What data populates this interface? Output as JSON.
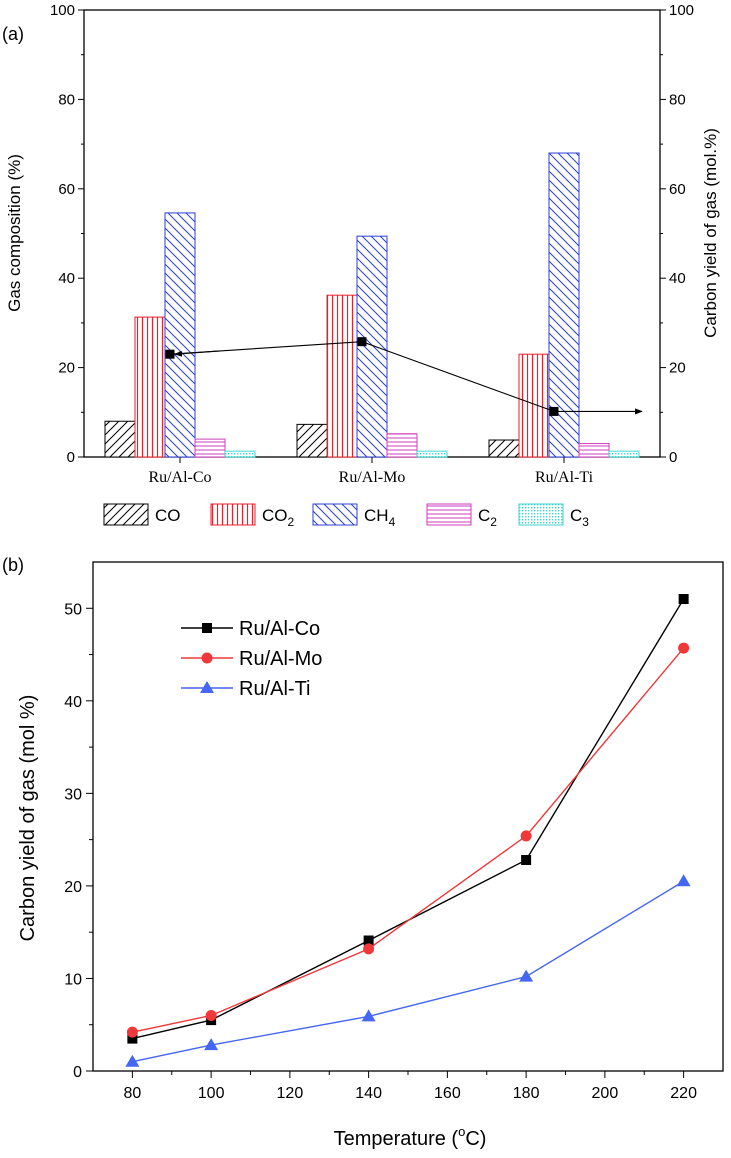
{
  "chart_data": [
    {
      "panel_label": "(a)",
      "type": "bar",
      "categories": [
        "Ru/Al-Co",
        "Ru/Al-Mo",
        "Ru/Al-Ti"
      ],
      "series": [
        {
          "name": "CO",
          "legend_main": "CO",
          "legend_sub": "",
          "values": [
            8,
            7.3,
            3.8
          ],
          "color": "#000000",
          "pattern": "diag-up"
        },
        {
          "name": "CO2",
          "legend_main": "CO",
          "legend_sub": "2",
          "values": [
            31.3,
            36.2,
            23
          ],
          "color": "#e8202a",
          "pattern": "vertical"
        },
        {
          "name": "CH4",
          "legend_main": "CH",
          "legend_sub": "4",
          "values": [
            54.6,
            49.4,
            68
          ],
          "color": "#2b3fd6",
          "pattern": "diag-down"
        },
        {
          "name": "C2",
          "legend_main": "C",
          "legend_sub": "2",
          "values": [
            4,
            5.2,
            3
          ],
          "color": "#d23dbd",
          "pattern": "horizontal"
        },
        {
          "name": "C3",
          "legend_main": "C",
          "legend_sub": "3",
          "values": [
            1.3,
            1.3,
            1.3
          ],
          "color": "#3fd6cf",
          "pattern": "dots"
        }
      ],
      "yield_line": {
        "values": [
          23,
          25.8,
          10.2
        ],
        "color": "#000000"
      },
      "ylabel": "Gas composition (%)",
      "y2label": "Carbon yield of gas (mol.%)",
      "ylim": [
        0,
        100
      ],
      "y2lim": [
        0,
        100
      ],
      "yticks": [
        0,
        20,
        40,
        60,
        80,
        100
      ],
      "legend_position": "bottom"
    },
    {
      "panel_label": "(b)",
      "type": "line",
      "x": [
        80,
        100,
        140,
        180,
        220
      ],
      "series": [
        {
          "name": "Ru/Al-Co",
          "values": [
            3.5,
            5.5,
            14.1,
            22.8,
            51
          ],
          "color": "#000000",
          "marker": "square"
        },
        {
          "name": "Ru/Al-Mo",
          "values": [
            4.2,
            6,
            13.2,
            25.4,
            45.7
          ],
          "color": "#f0383a",
          "marker": "circle"
        },
        {
          "name": "Ru/Al-Ti",
          "values": [
            1,
            2.8,
            5.9,
            10.2,
            20.5
          ],
          "color": "#4466f0",
          "marker": "triangle"
        }
      ],
      "xlabel_main": "Temperature (",
      "xlabel_sup": "o",
      "xlabel_end": "C)",
      "ylabel": "Carbon yield of gas (mol %)",
      "xlim": [
        70,
        230
      ],
      "ylim": [
        0,
        55
      ],
      "xticks": [
        80,
        100,
        120,
        140,
        160,
        180,
        200,
        220
      ],
      "yticks": [
        0,
        10,
        20,
        30,
        40,
        50
      ],
      "legend_position": "top-left"
    }
  ]
}
